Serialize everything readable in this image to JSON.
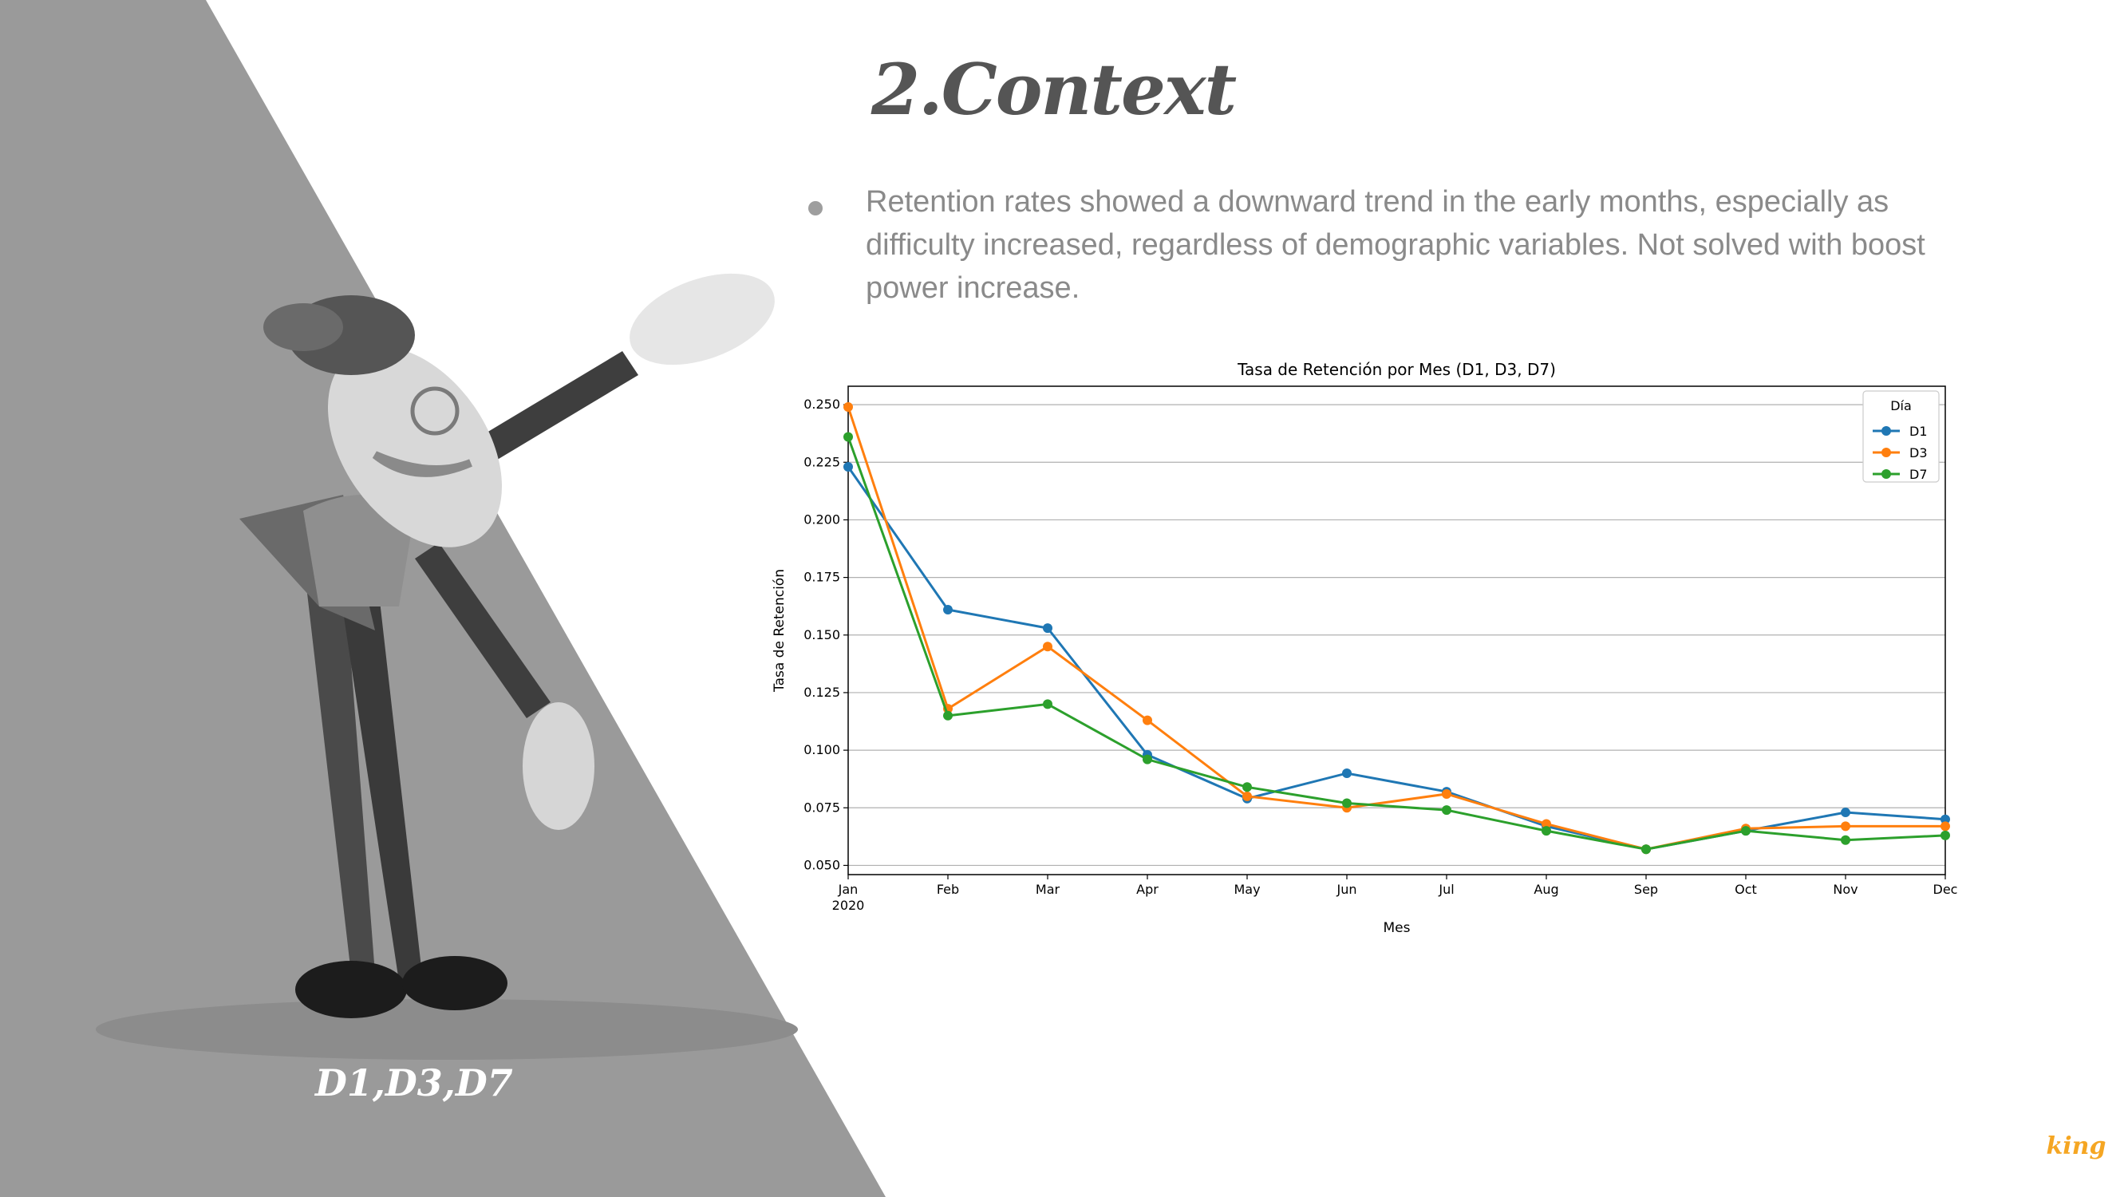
{
  "slide": {
    "title": "2.Context",
    "bullet": "Retention rates showed a  downward trend in the early months, especially as difficulty increased, regardless of demographic variables. Not solved with boost power increase.",
    "caption": "D1,D3,D7",
    "logo_text": "king"
  },
  "colors": {
    "triangle": "#9a9a9a",
    "title": "#555555",
    "bullet_text": "#8a8a8a",
    "logo": "#f5a623"
  },
  "chart_data": {
    "type": "line",
    "title": "Tasa de Retención por Mes (D1, D3, D7)",
    "xlabel": "Mes",
    "ylabel": "Tasa de Retención",
    "categories": [
      "Jan\n2020",
      "Feb",
      "Mar",
      "Apr",
      "May",
      "Jun",
      "Jul",
      "Aug",
      "Sep",
      "Oct",
      "Nov",
      "Dec"
    ],
    "ylim": [
      0.046,
      0.258
    ],
    "yticks": [
      0.05,
      0.075,
      0.1,
      0.125,
      0.15,
      0.175,
      0.2,
      0.225,
      0.25
    ],
    "ytick_labels": [
      "0.050",
      "0.075",
      "0.100",
      "0.125",
      "0.150",
      "0.175",
      "0.200",
      "0.225",
      "0.250"
    ],
    "grid": "horizontal",
    "legend": {
      "title": "Día",
      "placement": "top-right"
    },
    "series": [
      {
        "name": "D1",
        "color": "#1f77b4",
        "values": [
          0.223,
          0.161,
          0.153,
          0.098,
          0.079,
          0.09,
          0.082,
          0.067,
          0.057,
          0.065,
          0.073,
          0.07
        ]
      },
      {
        "name": "D3",
        "color": "#ff7f0e",
        "values": [
          0.249,
          0.118,
          0.145,
          0.113,
          0.08,
          0.075,
          0.081,
          0.068,
          0.057,
          0.066,
          0.067,
          0.067
        ]
      },
      {
        "name": "D7",
        "color": "#2ca02c",
        "values": [
          0.236,
          0.115,
          0.12,
          0.096,
          0.084,
          0.077,
          0.074,
          0.065,
          0.057,
          0.065,
          0.061,
          0.063
        ]
      }
    ]
  }
}
